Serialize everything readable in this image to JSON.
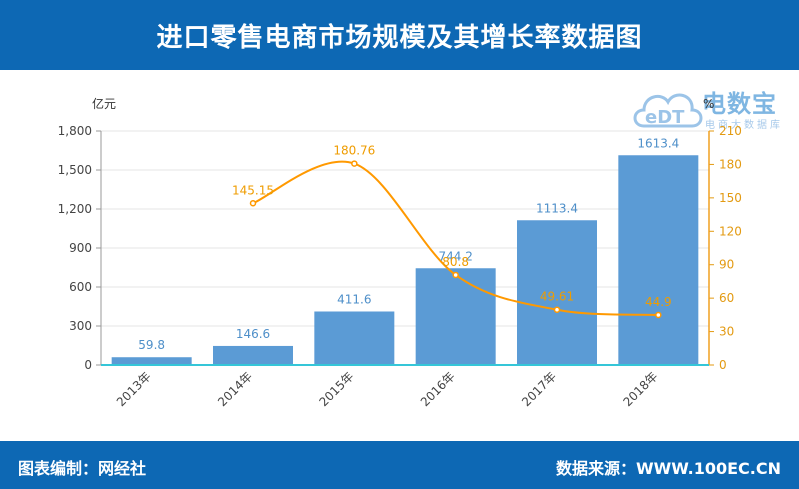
{
  "title": "进口零售电商市场规模及其增长率数据图",
  "footer": {
    "left": "图表编制：网经社",
    "right": "数据来源：WWW.100EC.CN"
  },
  "logo": {
    "mark": "eDT",
    "text": "电数宝",
    "sub": "电商大数据库"
  },
  "colors": {
    "header": "#0d68b4",
    "bar": "#5b9bd5",
    "line": "#ff9900",
    "right_axis": "#e39a11"
  },
  "chart_data": {
    "type": "bar+line",
    "categories": [
      "2013年",
      "2014年",
      "2015年",
      "2016年",
      "2017年",
      "2018年"
    ],
    "series": [
      {
        "type": "bar",
        "axis": "left",
        "values": [
          59.8,
          146.6,
          411.6,
          744.2,
          1113.4,
          1613.4
        ],
        "labels": [
          "59.8",
          "146.6",
          "411.6",
          "744.2",
          "1113.4",
          "1613.4"
        ]
      },
      {
        "type": "line",
        "axis": "right",
        "values": [
          null,
          145.15,
          180.76,
          80.8,
          49.61,
          44.9
        ],
        "labels": [
          "",
          "145.15",
          "180.76",
          "80.8",
          "49.61",
          "44.9"
        ]
      }
    ],
    "y_left": {
      "unit": "亿元",
      "range": [
        0,
        1800
      ],
      "ticks": [
        "0",
        "300",
        "600",
        "900",
        "1,200",
        "1,500",
        "1,800"
      ],
      "tick_values": [
        0,
        300,
        600,
        900,
        1200,
        1500,
        1800
      ]
    },
    "y_right": {
      "unit": "%",
      "range": [
        0,
        210
      ],
      "ticks": [
        "0",
        "30",
        "60",
        "90",
        "120",
        "150",
        "180",
        "210"
      ],
      "tick_values": [
        0,
        30,
        60,
        90,
        120,
        150,
        180,
        210
      ]
    },
    "grid": true,
    "legend": "none"
  }
}
